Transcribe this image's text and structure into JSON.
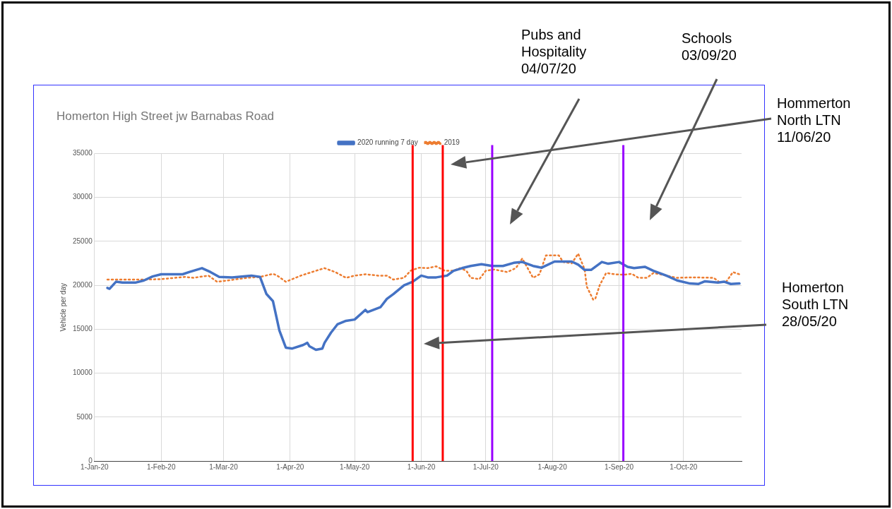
{
  "chart_data": {
    "type": "line",
    "title": "Homerton High Street jw Barnabas Road",
    "ylabel": "Vehicle per day",
    "xlim": [
      "2020-01-01",
      "2020-10-28"
    ],
    "xticks": [
      {
        "value": "2020-01-01",
        "label": "1-Jan-20"
      },
      {
        "value": "2020-02-01",
        "label": "1-Feb-20"
      },
      {
        "value": "2020-03-01",
        "label": "1-Mar-20"
      },
      {
        "value": "2020-04-01",
        "label": "1-Apr-20"
      },
      {
        "value": "2020-05-01",
        "label": "1-May-20"
      },
      {
        "value": "2020-06-01",
        "label": "1-Jun-20"
      },
      {
        "value": "2020-07-01",
        "label": "1-Jul-20"
      },
      {
        "value": "2020-08-01",
        "label": "1-Aug-20"
      },
      {
        "value": "2020-09-01",
        "label": "1-Sep-20"
      },
      {
        "value": "2020-10-01",
        "label": "1-Oct-20"
      }
    ],
    "ylim": [
      0,
      35000
    ],
    "yticks": [
      0,
      5000,
      10000,
      15000,
      20000,
      25000,
      30000,
      35000
    ],
    "grid": true,
    "legend": "top",
    "marker": "none",
    "series": [
      {
        "name": "2020 running 7 day",
        "color": "#4472c4",
        "line_style": "solid",
        "x": [
          "2020-01-07",
          "2020-01-08",
          "2020-01-11",
          "2020-01-14",
          "2020-01-20",
          "2020-01-24",
          "2020-01-28",
          "2020-02-01",
          "2020-02-07",
          "2020-02-11",
          "2020-02-14",
          "2020-02-20",
          "2020-02-24",
          "2020-02-28",
          "2020-03-05",
          "2020-03-14",
          "2020-03-18",
          "2020-03-21",
          "2020-03-24",
          "2020-03-27",
          "2020-03-30",
          "2020-04-02",
          "2020-04-07",
          "2020-04-09",
          "2020-04-10",
          "2020-04-13",
          "2020-04-16",
          "2020-04-17",
          "2020-04-20",
          "2020-04-23",
          "2020-04-27",
          "2020-05-01",
          "2020-05-06",
          "2020-05-07",
          "2020-05-13",
          "2020-05-16",
          "2020-05-19",
          "2020-05-24",
          "2020-05-28",
          "2020-06-01",
          "2020-06-04",
          "2020-06-08",
          "2020-06-13",
          "2020-06-16",
          "2020-06-20",
          "2020-06-24",
          "2020-06-29",
          "2020-07-04",
          "2020-07-09",
          "2020-07-14",
          "2020-07-18",
          "2020-07-23",
          "2020-07-27",
          "2020-08-02",
          "2020-08-10",
          "2020-08-13",
          "2020-08-16",
          "2020-08-19",
          "2020-08-24",
          "2020-08-27",
          "2020-09-01",
          "2020-09-05",
          "2020-09-08",
          "2020-09-13",
          "2020-09-17",
          "2020-09-23",
          "2020-09-28",
          "2020-10-04",
          "2020-10-08",
          "2020-10-11",
          "2020-10-17",
          "2020-10-20",
          "2020-10-23",
          "2020-10-27"
        ],
        "values": [
          19700,
          19600,
          20400,
          20300,
          20300,
          20550,
          21000,
          21250,
          21250,
          21250,
          21500,
          21950,
          21500,
          20950,
          20900,
          21100,
          20950,
          19000,
          18200,
          14850,
          12900,
          12800,
          13200,
          13450,
          13050,
          12650,
          12800,
          13450,
          14600,
          15550,
          15950,
          16100,
          17200,
          16950,
          17500,
          18450,
          19000,
          20000,
          20400,
          21100,
          20900,
          20900,
          21100,
          21650,
          21950,
          22200,
          22400,
          22200,
          22200,
          22550,
          22650,
          22200,
          22000,
          22700,
          22700,
          22350,
          21750,
          21750,
          22650,
          22450,
          22650,
          22100,
          21950,
          22100,
          21650,
          21100,
          20550,
          20200,
          20150,
          20450,
          20300,
          20400,
          20150,
          20200
        ]
      },
      {
        "name": "2019",
        "color": "#ed7d31",
        "line_style": "dotted",
        "x": [
          "2020-01-07",
          "2020-01-24",
          "2020-02-01",
          "2020-02-12",
          "2020-02-16",
          "2020-02-23",
          "2020-02-27",
          "2020-03-03",
          "2020-03-12",
          "2020-03-18",
          "2020-03-24",
          "2020-03-26",
          "2020-03-30",
          "2020-04-06",
          "2020-04-13",
          "2020-04-17",
          "2020-04-22",
          "2020-04-27",
          "2020-05-01",
          "2020-05-06",
          "2020-05-12",
          "2020-05-16",
          "2020-05-19",
          "2020-05-24",
          "2020-05-27",
          "2020-05-31",
          "2020-06-04",
          "2020-06-08",
          "2020-06-12",
          "2020-06-16",
          "2020-06-19",
          "2020-06-22",
          "2020-06-24",
          "2020-06-28",
          "2020-07-01",
          "2020-07-05",
          "2020-07-11",
          "2020-07-15",
          "2020-07-18",
          "2020-07-23",
          "2020-07-26",
          "2020-07-29",
          "2020-08-04",
          "2020-08-06",
          "2020-08-10",
          "2020-08-13",
          "2020-08-16",
          "2020-08-17",
          "2020-08-20",
          "2020-08-21",
          "2020-08-23",
          "2020-08-26",
          "2020-08-30",
          "2020-09-03",
          "2020-09-07",
          "2020-09-10",
          "2020-09-14",
          "2020-09-17",
          "2020-09-23",
          "2020-09-28",
          "2020-10-05",
          "2020-10-15",
          "2020-10-18",
          "2020-10-21",
          "2020-10-24",
          "2020-10-27"
        ],
        "values": [
          20650,
          20650,
          20700,
          20950,
          20850,
          21100,
          20400,
          20550,
          20850,
          20950,
          21300,
          21100,
          20400,
          21100,
          21650,
          21950,
          21500,
          20850,
          21100,
          21250,
          21100,
          21100,
          20650,
          20850,
          21650,
          22000,
          21950,
          22150,
          21650,
          21650,
          21950,
          21650,
          20850,
          20700,
          21650,
          21800,
          21500,
          21950,
          23050,
          20850,
          21250,
          23400,
          23400,
          22650,
          22500,
          23600,
          21800,
          19850,
          18350,
          18500,
          20000,
          21400,
          21250,
          21200,
          21300,
          20850,
          20850,
          21400,
          21100,
          20850,
          20900,
          20850,
          20300,
          20450,
          21500,
          21250
        ]
      }
    ],
    "ref_lines": [
      {
        "axis": "x",
        "value": "2020-05-28",
        "color": "#ff0000"
      },
      {
        "axis": "x",
        "value": "2020-06-11",
        "color": "#ff0000"
      },
      {
        "axis": "x",
        "value": "2020-07-04",
        "color": "#9900ff"
      },
      {
        "axis": "x",
        "value": "2020-09-03",
        "color": "#9900ff"
      }
    ],
    "annotations": [
      "Homerton South LTN 28/05/20",
      "Hommerton North LTN 11/06/20",
      "Pubs and Hospitality 04/07/20",
      "Schools 03/09/20"
    ]
  }
}
